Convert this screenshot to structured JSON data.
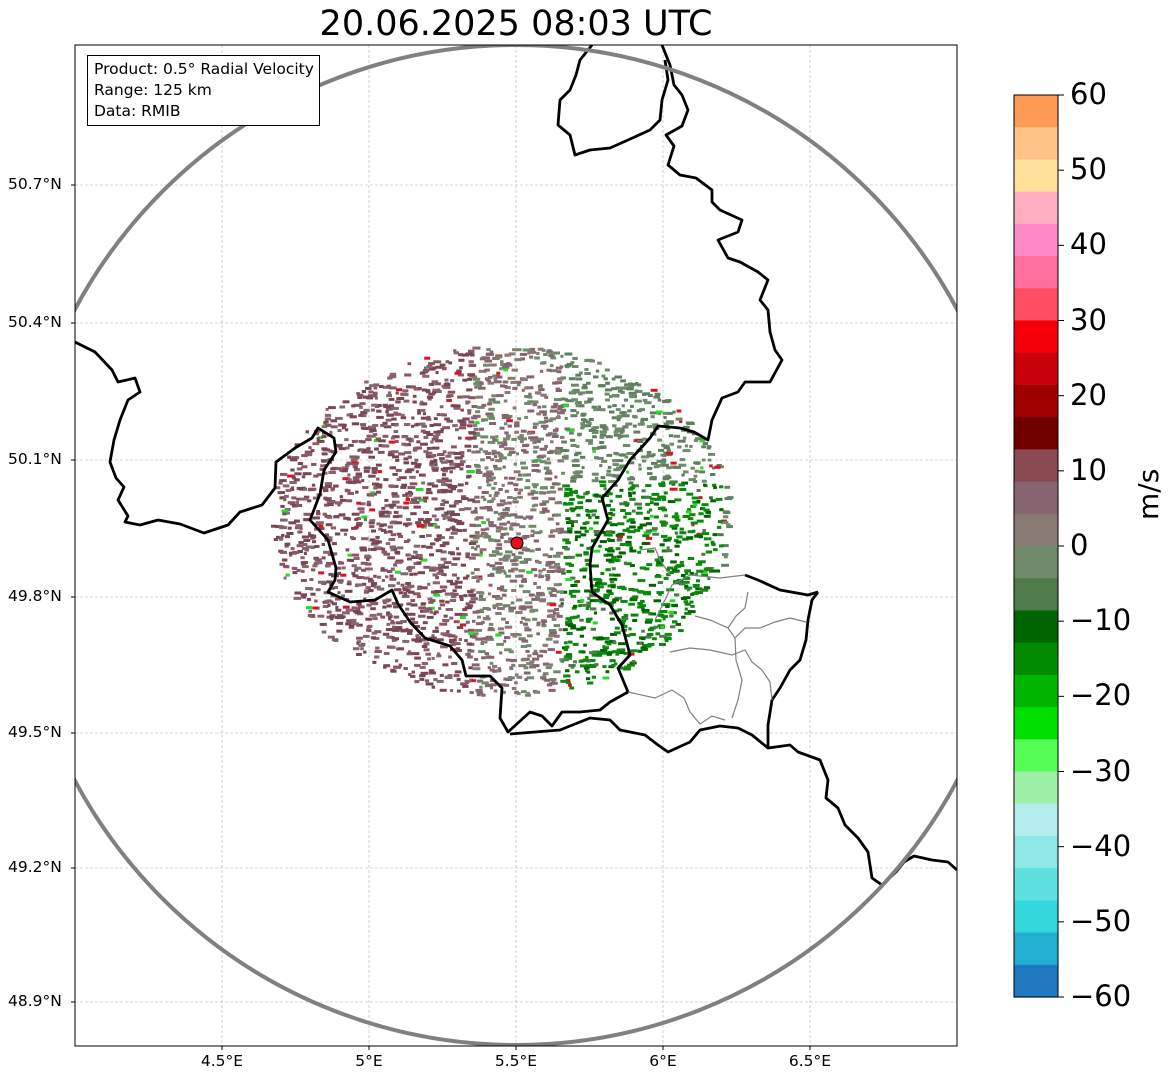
{
  "title": "20.06.2025 08:03 UTC",
  "info": {
    "product": "Product: 0.5° Radial Velocity",
    "range": "Range: 125 km",
    "data": "Data: RMIB"
  },
  "axes": {
    "y_ticks": [
      "50.7°N",
      "50.4°N",
      "50.1°N",
      "49.8°N",
      "49.5°N",
      "49.2°N",
      "48.9°N"
    ],
    "x_ticks": [
      "4.5°E",
      "5°E",
      "5.5°E",
      "6°E",
      "6.5°E"
    ],
    "lon_range": [
      4.0,
      7.0
    ],
    "lat_range": [
      48.8,
      51.0
    ],
    "grid": true
  },
  "radar": {
    "site_lon": 5.5,
    "site_lat": 49.91,
    "range_km": 125,
    "colors": {
      "site": "#e8101a",
      "range_ring": "#808080",
      "border": "#000000",
      "subborder": "#808080"
    }
  },
  "colorbar": {
    "unit": "m/s",
    "ticks": [
      "60",
      "50",
      "40",
      "30",
      "20",
      "10",
      "0",
      "−10",
      "−20",
      "−30",
      "−40",
      "−50",
      "−60"
    ],
    "range": [
      -60,
      60
    ],
    "colors": [
      "#ff9a55",
      "#ffc287",
      "#ffe19a",
      "#ffadc0",
      "#ff88c8",
      "#ff6e9c",
      "#ff4d62",
      "#f5000a",
      "#c8000a",
      "#9e0000",
      "#700000",
      "#8a4a52",
      "#87646f",
      "#8a7a74",
      "#6e8a6a",
      "#4f7a4a",
      "#006400",
      "#008a00",
      "#00b400",
      "#00e000",
      "#55ff55",
      "#9ef0a6",
      "#b2ecec",
      "#8ee6e6",
      "#5fe0e0",
      "#33d8dc",
      "#22b0d0",
      "#1f78c0"
    ]
  }
}
